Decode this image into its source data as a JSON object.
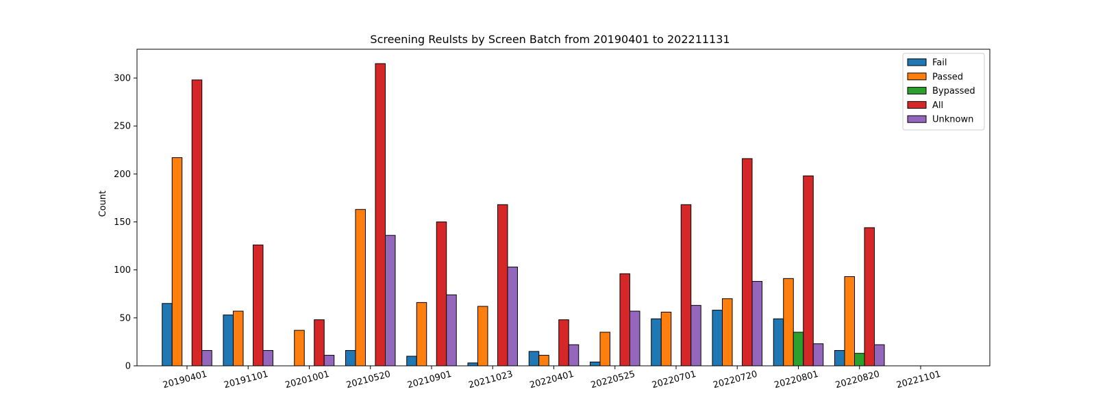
{
  "chart_data": {
    "type": "bar",
    "title": "Screening Reulsts by Screen Batch from 20190401 to 202211131",
    "xlabel": "",
    "ylabel": "Count",
    "ylim": [
      0,
      330
    ],
    "yticks": [
      0,
      50,
      100,
      150,
      200,
      250,
      300
    ],
    "grid": false,
    "legend_position": "top-right",
    "categories": [
      "20190401",
      "20191101",
      "20201001",
      "20210520",
      "20210901",
      "20211023",
      "20220401",
      "20220525",
      "20220701",
      "20220720",
      "20220801",
      "20220820",
      "20221101"
    ],
    "series": [
      {
        "name": "Fail",
        "color": "#1f77b4",
        "values": [
          65,
          53,
          0,
          16,
          10,
          3,
          15,
          4,
          49,
          58,
          49,
          16,
          0
        ]
      },
      {
        "name": "Passed",
        "color": "#ff7f0e",
        "values": [
          217,
          57,
          37,
          163,
          66,
          62,
          11,
          35,
          56,
          70,
          91,
          93,
          0
        ]
      },
      {
        "name": "Bypassed",
        "color": "#2ca02c",
        "values": [
          0,
          0,
          0,
          0,
          0,
          0,
          0,
          0,
          0,
          0,
          35,
          13,
          0
        ]
      },
      {
        "name": "All",
        "color": "#d62728",
        "values": [
          298,
          126,
          48,
          315,
          150,
          168,
          48,
          96,
          168,
          216,
          198,
          144,
          0
        ]
      },
      {
        "name": "Unknown",
        "color": "#9467bd",
        "values": [
          16,
          16,
          11,
          136,
          74,
          103,
          22,
          57,
          63,
          88,
          23,
          22,
          0
        ]
      }
    ]
  }
}
